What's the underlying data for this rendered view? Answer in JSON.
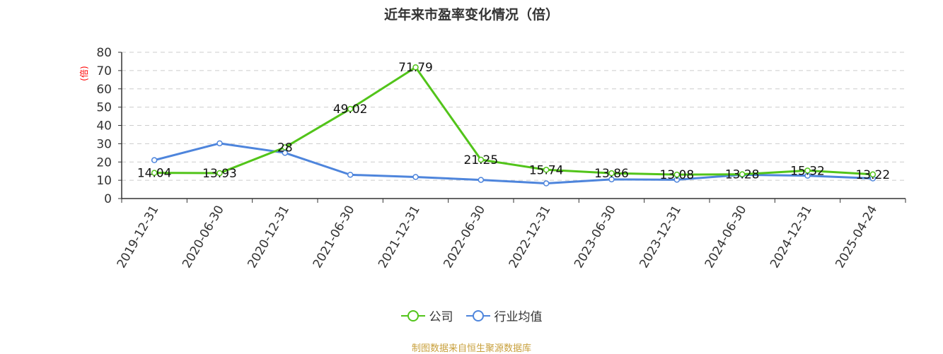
{
  "title": "近年来市盈率变化情况（倍）",
  "source": "制图数据来自恒生聚源数据库",
  "colors": {
    "company": "#52c41a",
    "industry": "#4e85dc",
    "unit": "#ff0000",
    "source": "#c8a03c"
  },
  "chart_data": {
    "type": "line",
    "title": "近年来市盈率变化情况（倍）",
    "xlabel": "",
    "ylabel": "(倍)",
    "ylim": [
      0,
      80
    ],
    "yticks": [
      0,
      10,
      20,
      30,
      40,
      50,
      60,
      70,
      80
    ],
    "grid": true,
    "legend_position": "bottom",
    "categories": [
      "2019-12-31",
      "2020-06-30",
      "2020-12-31",
      "2021-06-30",
      "2021-12-31",
      "2022-06-30",
      "2022-12-31",
      "2023-06-30",
      "2023-12-31",
      "2024-06-30",
      "2024-12-31",
      "2025-04-24"
    ],
    "series": [
      {
        "name": "公司",
        "color": "#52c41a",
        "labeled": true,
        "values": [
          14.04,
          13.93,
          28,
          49.02,
          71.79,
          21.25,
          15.74,
          13.86,
          13.08,
          13.28,
          15.32,
          13.22
        ]
      },
      {
        "name": "行业均值",
        "color": "#4e85dc",
        "labeled": false,
        "values": [
          21.0,
          30.2,
          25.0,
          13.0,
          11.8,
          10.2,
          8.3,
          10.5,
          10.3,
          13.0,
          12.5,
          11.0
        ]
      }
    ]
  }
}
